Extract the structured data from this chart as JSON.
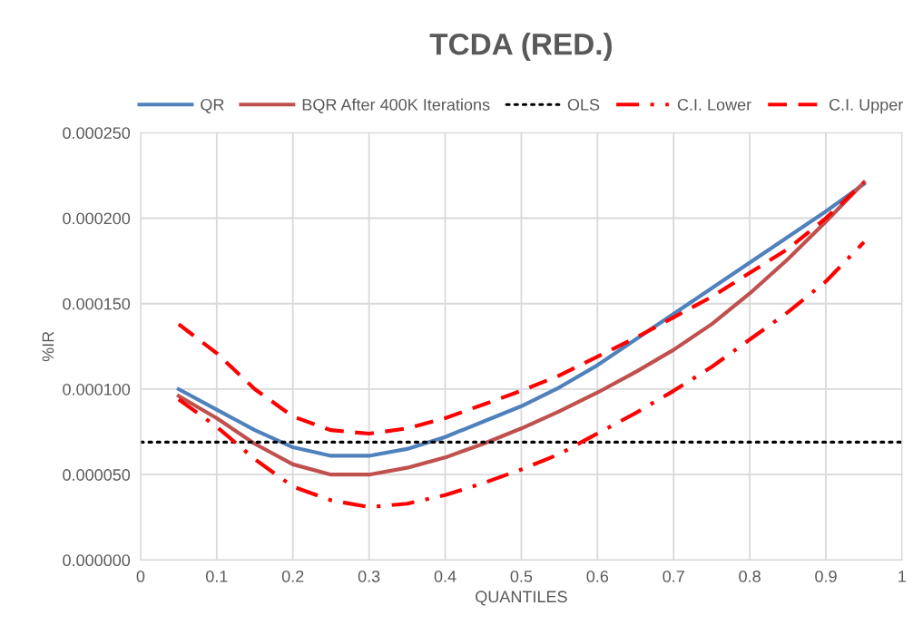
{
  "chart_data": {
    "type": "line",
    "title": "TCDA (RED.)",
    "xlabel": "QUANTILES",
    "ylabel": "%IR",
    "x": [
      0.05,
      0.1,
      0.15,
      0.2,
      0.25,
      0.3,
      0.35,
      0.4,
      0.45,
      0.5,
      0.55,
      0.6,
      0.65,
      0.7,
      0.75,
      0.8,
      0.85,
      0.9,
      0.95
    ],
    "series": [
      {
        "name": "QR",
        "color": "#4f81bd",
        "line_style": "solid",
        "values": [
          0.0001,
          8.8e-05,
          7.6e-05,
          6.6e-05,
          6.1e-05,
          6.1e-05,
          6.5e-05,
          7.2e-05,
          8.1e-05,
          9e-05,
          0.000101,
          0.000114,
          0.000129,
          0.000144,
          0.000159,
          0.000174,
          0.000189,
          0.000204,
          0.00022
        ]
      },
      {
        "name": "BQR After 400K Iterations",
        "color": "#c0504d",
        "line_style": "solid",
        "values": [
          9.6e-05,
          8.3e-05,
          6.8e-05,
          5.6e-05,
          5e-05,
          5e-05,
          5.4e-05,
          6e-05,
          6.8e-05,
          7.7e-05,
          8.7e-05,
          9.8e-05,
          0.00011,
          0.000123,
          0.000138,
          0.000156,
          0.000176,
          0.000198,
          0.000221
        ]
      },
      {
        "name": "OLS",
        "color": "#000000",
        "line_style": "dotted",
        "x": [
          0,
          1
        ],
        "values": [
          6.9e-05,
          6.9e-05
        ]
      },
      {
        "name": "C.I. Lower",
        "color": "#ff0000",
        "line_style": "dashdot",
        "values": [
          9.4e-05,
          7.8e-05,
          5.9e-05,
          4.3e-05,
          3.5e-05,
          3.1e-05,
          3.3e-05,
          3.8e-05,
          4.5e-05,
          5.3e-05,
          6.2e-05,
          7.4e-05,
          8.6e-05,
          9.9e-05,
          0.000113,
          0.000129,
          0.000145,
          0.000163,
          0.000186
        ]
      },
      {
        "name": "C.I. Upper",
        "color": "#ff0000",
        "line_style": "dashed",
        "values": [
          0.000138,
          0.000121,
          0.0001,
          8.4e-05,
          7.6e-05,
          7.4e-05,
          7.7e-05,
          8.3e-05,
          9.1e-05,
          9.9e-05,
          0.000108,
          0.000119,
          0.00013,
          0.000142,
          0.000154,
          0.000168,
          0.000182,
          0.0002,
          0.000221
        ]
      }
    ],
    "xlim": [
      0,
      1
    ],
    "xticks": [
      0,
      0.1,
      0.2,
      0.3,
      0.4,
      0.5,
      0.6,
      0.7,
      0.8,
      0.9,
      1
    ],
    "ylim": [
      0,
      0.00025
    ],
    "yticks": [
      {
        "value": 0,
        "label": "0.000000"
      },
      {
        "value": 5e-05,
        "label": "0.000050"
      },
      {
        "value": 0.0001,
        "label": "0.000100"
      },
      {
        "value": 0.00015,
        "label": "0.000150"
      },
      {
        "value": 0.0002,
        "label": "0.000200"
      },
      {
        "value": 0.00025,
        "label": "0.000250"
      }
    ],
    "grid": true,
    "legend": "top",
    "marker": "none"
  }
}
